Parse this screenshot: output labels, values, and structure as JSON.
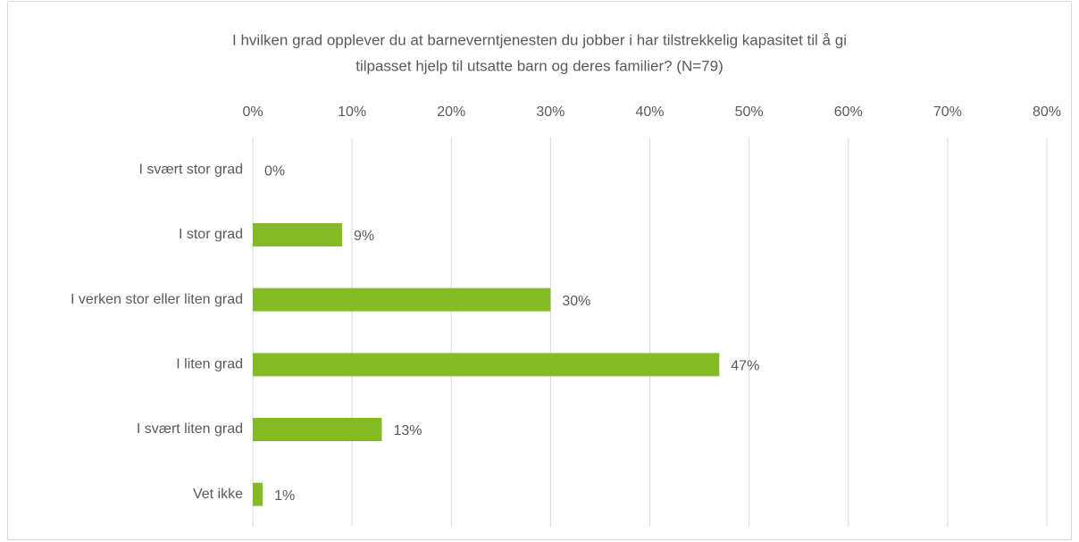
{
  "chart_data": {
    "type": "barh",
    "title": [
      "I hvilken grad opplever du at barneverntjenesten du jobber i har tilstrekkelig kapasitet til å gi",
      "tilpasset hjelp til utsatte barn og deres familier? (N=79)"
    ],
    "categories": [
      "I svært stor grad",
      "I stor grad",
      "I verken stor eller liten grad",
      "I liten grad",
      "I svært liten grad",
      "Vet ikke"
    ],
    "values": [
      0,
      9,
      30,
      47,
      13,
      1
    ],
    "value_labels": [
      "0%",
      "9%",
      "30%",
      "47%",
      "13%",
      "1%"
    ],
    "color": "#84bb25",
    "xlim": [
      0,
      80
    ],
    "xticks": [
      {
        "value": 0,
        "label": "0%"
      },
      {
        "value": 10,
        "label": "10%"
      },
      {
        "value": 20,
        "label": "20%"
      },
      {
        "value": 30,
        "label": "30%"
      },
      {
        "value": 40,
        "label": "40%"
      },
      {
        "value": 50,
        "label": "50%"
      },
      {
        "value": 60,
        "label": "60%"
      },
      {
        "value": 70,
        "label": "70%"
      },
      {
        "value": 80,
        "label": "80%"
      }
    ],
    "grid": true
  }
}
